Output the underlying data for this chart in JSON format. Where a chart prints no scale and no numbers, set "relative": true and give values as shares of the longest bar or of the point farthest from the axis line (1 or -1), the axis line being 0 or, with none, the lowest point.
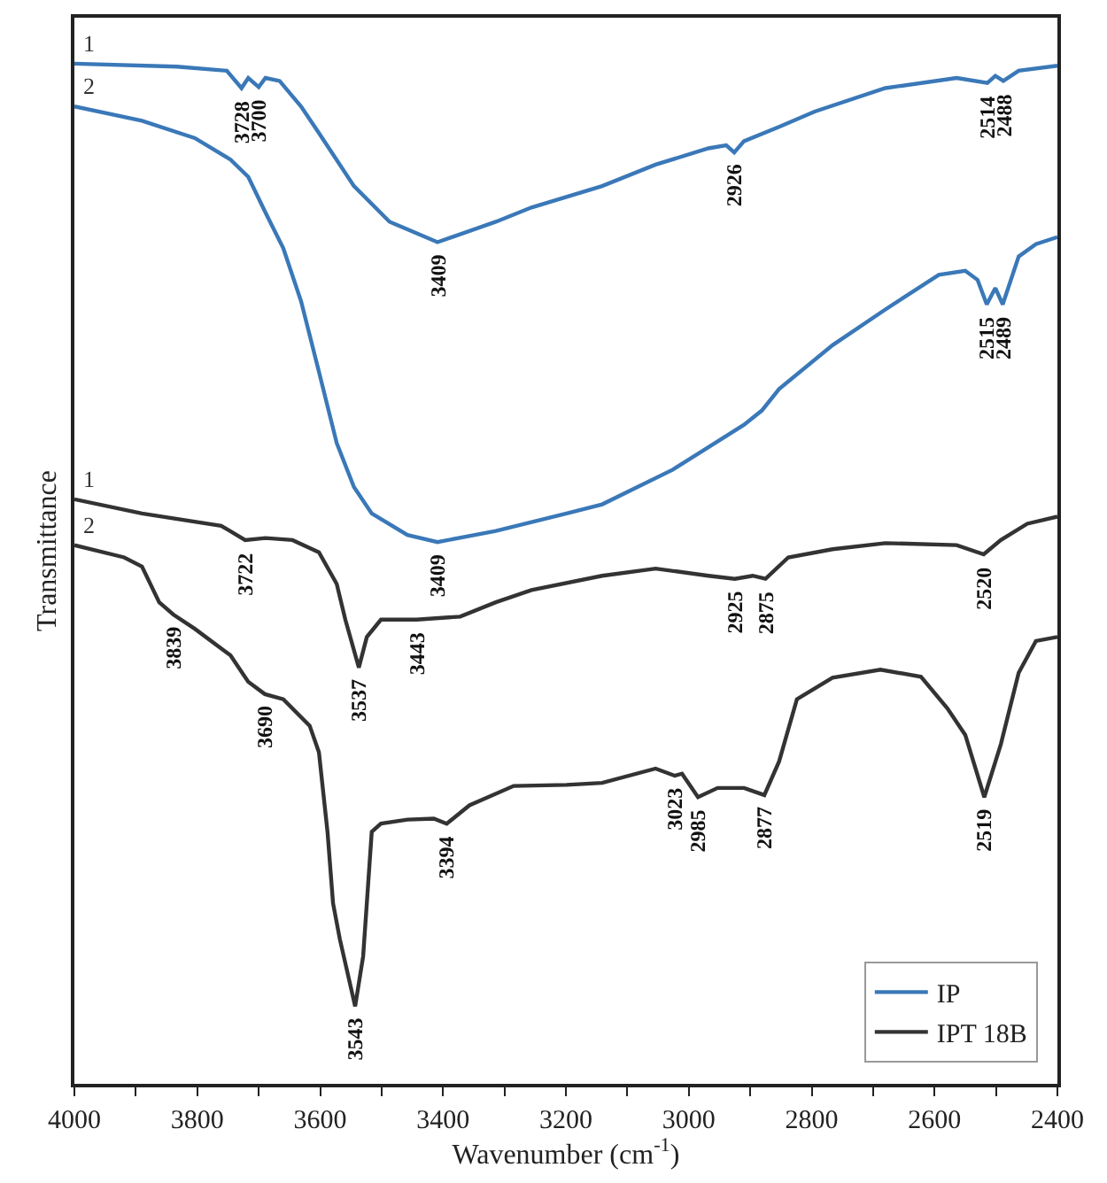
{
  "chart_data": {
    "type": "line",
    "relative": true,
    "xlabel": "Wavenumber (cm$^{-1}$)",
    "ylabel": "Transmittance",
    "xlim": [
      4000,
      2400
    ],
    "xticks": [
      4000,
      {
        "value": 3900,
        "label": null
      },
      3800,
      {
        "value": 3700,
        "label": null
      },
      3600,
      {
        "value": 3500,
        "label": null
      },
      3400,
      {
        "value": 3300,
        "label": null
      },
      3200,
      {
        "value": 3100,
        "label": null
      },
      3000,
      {
        "value": 2900,
        "label": null
      },
      2800,
      {
        "value": 2700,
        "label": null
      },
      2600,
      {
        "value": 2500,
        "label": null
      },
      2400
    ],
    "grid": false,
    "legend": "bottom right",
    "tick_labels": "x",
    "line_style": "solid",
    "marker": "none",
    "series": [
      {
        "name": "IP",
        "color": "#3a78b8",
        "x": [
          4000,
          3833,
          3752,
          3728,
          3717,
          3700,
          3689,
          3666,
          3631,
          3602,
          3545,
          3487,
          3409,
          3314,
          3256,
          3141,
          3054,
          2968,
          2939,
          2926,
          2910,
          2853,
          2795,
          2680,
          2564,
          2514,
          2501,
          2488,
          2463,
          2400
        ],
        "values": [
          1.0,
          0.997,
          0.993,
          0.976,
          0.986,
          0.977,
          0.986,
          0.983,
          0.958,
          0.932,
          0.88,
          0.845,
          0.825,
          0.845,
          0.859,
          0.88,
          0.901,
          0.917,
          0.92,
          0.913,
          0.924,
          0.938,
          0.953,
          0.976,
          0.986,
          0.981,
          0.988,
          0.983,
          0.993,
          0.998
        ]
      },
      {
        "color": "#3a78b8",
        "x": [
          4000,
          3890,
          3804,
          3746,
          3717,
          3689,
          3660,
          3631,
          3602,
          3573,
          3545,
          3516,
          3458,
          3409,
          3314,
          3199,
          3141,
          3026,
          2910,
          2881,
          2853,
          2766,
          2680,
          2593,
          2550,
          2530,
          2515,
          2501,
          2489,
          2463,
          2435,
          2400
        ],
        "values": [
          0.958,
          0.944,
          0.927,
          0.906,
          0.889,
          0.854,
          0.819,
          0.767,
          0.698,
          0.628,
          0.585,
          0.559,
          0.538,
          0.531,
          0.542,
          0.559,
          0.568,
          0.602,
          0.646,
          0.66,
          0.681,
          0.724,
          0.759,
          0.793,
          0.797,
          0.788,
          0.764,
          0.78,
          0.764,
          0.811,
          0.823,
          0.83
        ]
      },
      {
        "name": "IPT 18B",
        "color": "#333333",
        "x": [
          4000,
          3890,
          3761,
          3722,
          3689,
          3645,
          3602,
          3573,
          3559,
          3537,
          3524,
          3501,
          3443,
          3372,
          3314,
          3256,
          3141,
          3054,
          2968,
          2925,
          2896,
          2875,
          2838,
          2766,
          2680,
          2564,
          2520,
          2492,
          2449,
          2400
        ],
        "values": [
          0.573,
          0.559,
          0.547,
          0.533,
          0.535,
          0.533,
          0.521,
          0.49,
          0.455,
          0.408,
          0.438,
          0.455,
          0.455,
          0.458,
          0.472,
          0.484,
          0.498,
          0.505,
          0.498,
          0.495,
          0.498,
          0.495,
          0.516,
          0.524,
          0.53,
          0.528,
          0.519,
          0.533,
          0.549,
          0.556
        ]
      },
      {
        "color": "#333333",
        "x": [
          4000,
          3919,
          3890,
          3862,
          3839,
          3804,
          3746,
          3717,
          3690,
          3660,
          3617,
          3602,
          3588,
          3579,
          3568,
          3543,
          3530,
          3516,
          3501,
          3458,
          3415,
          3394,
          3357,
          3285,
          3199,
          3141,
          3054,
          3023,
          3011,
          2985,
          2953,
          2910,
          2877,
          2853,
          2824,
          2766,
          2688,
          2622,
          2579,
          2550,
          2519,
          2492,
          2463,
          2435,
          2400
        ],
        "values": [
          0.528,
          0.516,
          0.507,
          0.472,
          0.46,
          0.446,
          0.42,
          0.394,
          0.382,
          0.377,
          0.351,
          0.325,
          0.247,
          0.177,
          0.142,
          0.076,
          0.125,
          0.247,
          0.255,
          0.259,
          0.26,
          0.255,
          0.273,
          0.292,
          0.293,
          0.295,
          0.309,
          0.302,
          0.304,
          0.281,
          0.29,
          0.29,
          0.283,
          0.316,
          0.377,
          0.398,
          0.406,
          0.399,
          0.368,
          0.342,
          0.281,
          0.333,
          0.403,
          0.434,
          0.438
        ]
      }
    ],
    "annotations": [
      {
        "text": "1",
        "x": 4000,
        "y": 1.0
      },
      {
        "text": "2",
        "x": 4000,
        "y": 0.958
      },
      {
        "text": "1",
        "x": 4000,
        "y": 0.573
      },
      {
        "text": "2",
        "x": 4000,
        "y": 0.528
      },
      {
        "text": "3728",
        "x": 3728,
        "y": 0.976
      },
      {
        "text": "3700",
        "x": 3700,
        "y": 0.977
      },
      {
        "text": "3409",
        "x": 3409,
        "y": 0.825
      },
      {
        "text": "2926",
        "x": 2926,
        "y": 0.913
      },
      {
        "text": "2514",
        "x": 2514,
        "y": 0.981
      },
      {
        "text": "2488",
        "x": 2488,
        "y": 0.983
      },
      {
        "text": "3409",
        "x": 3409,
        "y": 0.531
      },
      {
        "text": "2515",
        "x": 2515,
        "y": 0.764
      },
      {
        "text": "2489",
        "x": 2489,
        "y": 0.764
      },
      {
        "text": "3722",
        "x": 3722,
        "y": 0.533
      },
      {
        "text": "3537",
        "x": 3537,
        "y": 0.408
      },
      {
        "text": "3443",
        "x": 3443,
        "y": 0.455
      },
      {
        "text": "2925",
        "x": 2925,
        "y": 0.495
      },
      {
        "text": "2875",
        "x": 2875,
        "y": 0.495
      },
      {
        "text": "2520",
        "x": 2520,
        "y": 0.519
      },
      {
        "text": "3839",
        "x": 3839,
        "y": 0.46
      },
      {
        "text": "3690",
        "x": 3690,
        "y": 0.382
      },
      {
        "text": "3543",
        "x": 3543,
        "y": 0.076
      },
      {
        "text": "3394",
        "x": 3394,
        "y": 0.255
      },
      {
        "text": "3023",
        "x": 3023,
        "y": 0.302
      },
      {
        "text": "2985",
        "x": 2985,
        "y": 0.281
      },
      {
        "text": "2877",
        "x": 2877,
        "y": 0.283
      },
      {
        "text": "2519",
        "x": 2519,
        "y": 0.281
      }
    ]
  }
}
